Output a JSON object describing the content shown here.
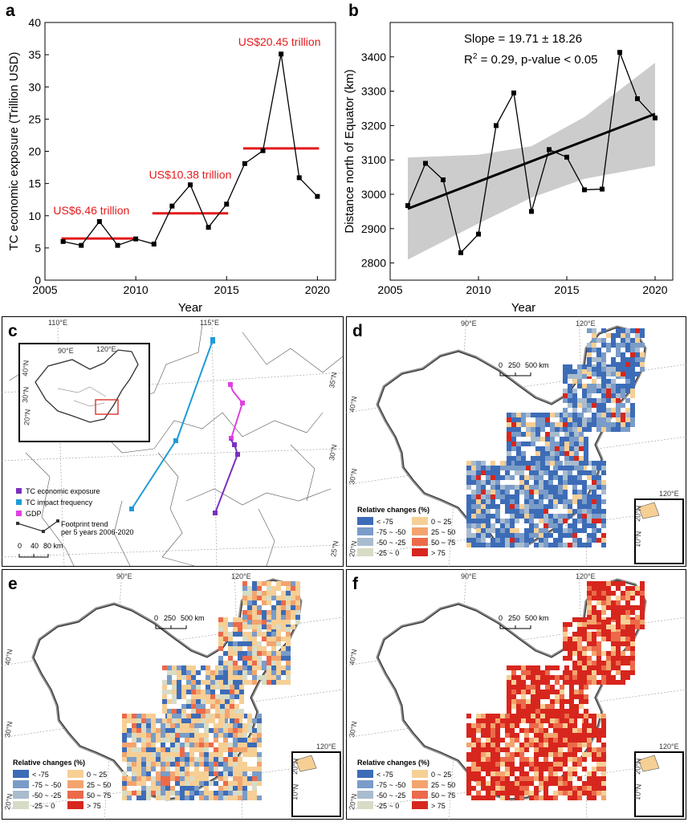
{
  "panels": {
    "a": "a",
    "b": "b",
    "c": "c",
    "d": "d",
    "e": "e",
    "f": "f"
  },
  "chart_data": [
    {
      "type": "line",
      "panel": "a",
      "xlabel": "Year",
      "ylabel": "TC economic exposure (Trillion USD)",
      "xlim": [
        2005,
        2021
      ],
      "ylim": [
        0,
        40
      ],
      "xticks": [
        2005,
        2010,
        2015,
        2020
      ],
      "yticks": [
        0,
        5,
        10,
        15,
        20,
        25,
        30,
        35,
        40
      ],
      "x": [
        2006,
        2007,
        2008,
        2009,
        2010,
        2011,
        2012,
        2013,
        2014,
        2015,
        2016,
        2017,
        2018,
        2019,
        2020
      ],
      "y": [
        6.0,
        5.4,
        9.1,
        5.4,
        6.4,
        5.6,
        11.5,
        14.8,
        8.2,
        11.8,
        18.1,
        20.1,
        35.1,
        15.9,
        13.0
      ],
      "period_means": [
        {
          "x0": 2006,
          "x1": 2010,
          "y": 6.46,
          "label": "US$6.46 trillion"
        },
        {
          "x0": 2011,
          "x1": 2015,
          "y": 10.38,
          "label": "US$10.38 trillion"
        },
        {
          "x0": 2016,
          "x1": 2020,
          "y": 20.45,
          "label": "US$20.45 trillion"
        }
      ],
      "colors": {
        "line": "#000000",
        "mean": "#e41a1c"
      }
    },
    {
      "type": "line",
      "panel": "b",
      "xlabel": "Year",
      "ylabel": "Distance north of Equator (km)",
      "xlim": [
        2005,
        2021
      ],
      "ylim": [
        2750,
        3500
      ],
      "xticks": [
        2005,
        2010,
        2015,
        2020
      ],
      "yticks": [
        2800,
        2900,
        3000,
        3100,
        3200,
        3300,
        3400
      ],
      "x": [
        2006,
        2007,
        2008,
        2009,
        2010,
        2011,
        2012,
        2013,
        2014,
        2015,
        2016,
        2017,
        2018,
        2019,
        2020
      ],
      "y": [
        2967,
        3090,
        3042,
        2830,
        2884,
        3200,
        3295,
        2950,
        3130,
        3108,
        3013,
        3015,
        3413,
        3278,
        3222
      ],
      "trend": {
        "x0": 2006,
        "y0": 2958,
        "x1": 2020,
        "y1": 3234
      },
      "band_lower": [
        [
          2006,
          2810
        ],
        [
          2010,
          2915
        ],
        [
          2013,
          2990
        ],
        [
          2016,
          3045
        ],
        [
          2020,
          3083
        ]
      ],
      "band_upper": [
        [
          2006,
          3107
        ],
        [
          2010,
          3115
        ],
        [
          2013,
          3140
        ],
        [
          2016,
          3225
        ],
        [
          2020,
          3383
        ]
      ],
      "annotation_slope": "Slope = 19.71 ± 18.26",
      "annotation_r2_base": "R",
      "annotation_r2_sup": "2",
      "annotation_r2_rest": " = 0.29, p-value < 0.05",
      "colors": {
        "line": "#000000",
        "band": "#cccccc"
      }
    }
  ],
  "map_c": {
    "lon_labels": [
      "110°E",
      "115°E"
    ],
    "lat_labels": [
      "35°N",
      "30°N",
      "25°N"
    ],
    "inset_lon": [
      "90°E",
      "120°E"
    ],
    "inset_lat": [
      "40°N",
      "30°N",
      "20°N"
    ],
    "legend": [
      {
        "label": "TC economic exposure",
        "color": "#7b2fbe"
      },
      {
        "label": "TC impact frequency",
        "color": "#1f9bd6"
      },
      {
        "label": "GDP",
        "color": "#e040e0"
      }
    ],
    "footprint_label_1": "Footprint trend",
    "footprint_label_2": "per 5 years 2006-2020",
    "scale_labels": [
      "0",
      "40",
      "80 km"
    ]
  },
  "maps_def": {
    "lon_labels": [
      "90°E",
      "120°E"
    ],
    "lat_labels": [
      "40°N",
      "30°N",
      "20°N"
    ],
    "inset_lon": "120°E",
    "inset_lat": [
      "20°N",
      "10°N"
    ],
    "scale_labels": [
      "0",
      "250",
      "500 km"
    ],
    "legend_title": "Relative changes (%)",
    "legend_items": [
      {
        "label": "< -75",
        "color": "#3d6cb7"
      },
      {
        "label": "-75 ~ -50",
        "color": "#7a9cc8"
      },
      {
        "label": "-50 ~ -25",
        "color": "#a9bcce"
      },
      {
        "label": "-25 ~ 0",
        "color": "#d7dcc6"
      },
      {
        "label": "0 ~ 25",
        "color": "#f6cf95"
      },
      {
        "label": "25 ~ 50",
        "color": "#f3a46e"
      },
      {
        "label": "50 ~ 75",
        "color": "#ec6a4a"
      },
      {
        "label": "> 75",
        "color": "#d7261e"
      }
    ]
  }
}
